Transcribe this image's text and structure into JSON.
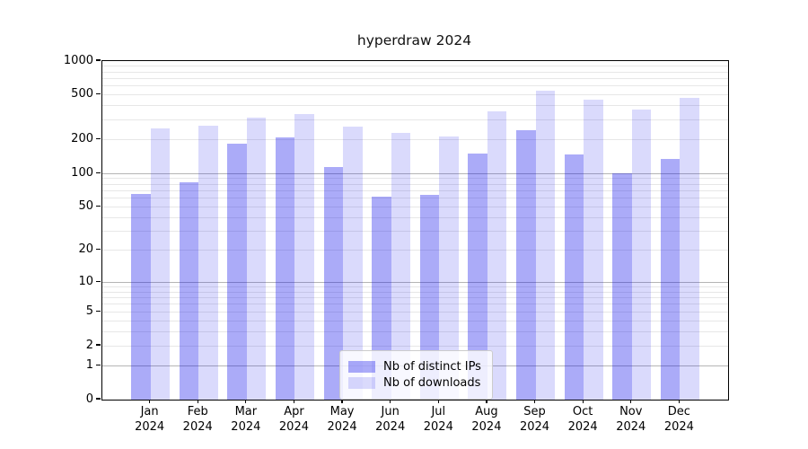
{
  "title": "hyperdraw 2024",
  "chart_data": {
    "type": "bar",
    "title": "hyperdraw 2024",
    "categories": [
      "Jan",
      "Feb",
      "Mar",
      "Apr",
      "May",
      "Jun",
      "Jul",
      "Aug",
      "Sep",
      "Oct",
      "Nov",
      "Dec"
    ],
    "x_tick_second_line": "2024",
    "series": [
      {
        "name": "Nb of distinct IPs",
        "color_hex": "#a9a9f7",
        "color_rgba": "rgba(10,10,235,0.34)",
        "values": [
          65,
          83,
          185,
          210,
          115,
          62,
          64,
          151,
          243,
          149,
          100,
          135
        ]
      },
      {
        "name": "Nb of downloads",
        "color_hex": "#dbdbf9",
        "color_rgba": "rgba(10,10,235,0.15)",
        "values": [
          250,
          265,
          317,
          338,
          262,
          231,
          215,
          358,
          545,
          452,
          371,
          473
        ]
      }
    ],
    "yscale": "log1p",
    "ylim": [
      0,
      1000
    ],
    "yticks": [
      0,
      1,
      2,
      5,
      10,
      20,
      50,
      100,
      200,
      500,
      1000
    ],
    "major_gridlines": [
      1,
      10,
      100
    ],
    "minor_gridlines": [
      2,
      3,
      4,
      5,
      6,
      7,
      8,
      9,
      20,
      30,
      40,
      50,
      60,
      70,
      80,
      90,
      200,
      300,
      400,
      500,
      600,
      700,
      800,
      900
    ],
    "grid": true,
    "legend_position": "lower center",
    "xlabel": "",
    "ylabel": ""
  },
  "colors": {
    "background": "#ffffff",
    "spine": "#000000",
    "major_grid": "#b5b5b5",
    "minor_grid": "#e7e7e7",
    "text": "#000000",
    "legend_border": "#cccccc"
  }
}
